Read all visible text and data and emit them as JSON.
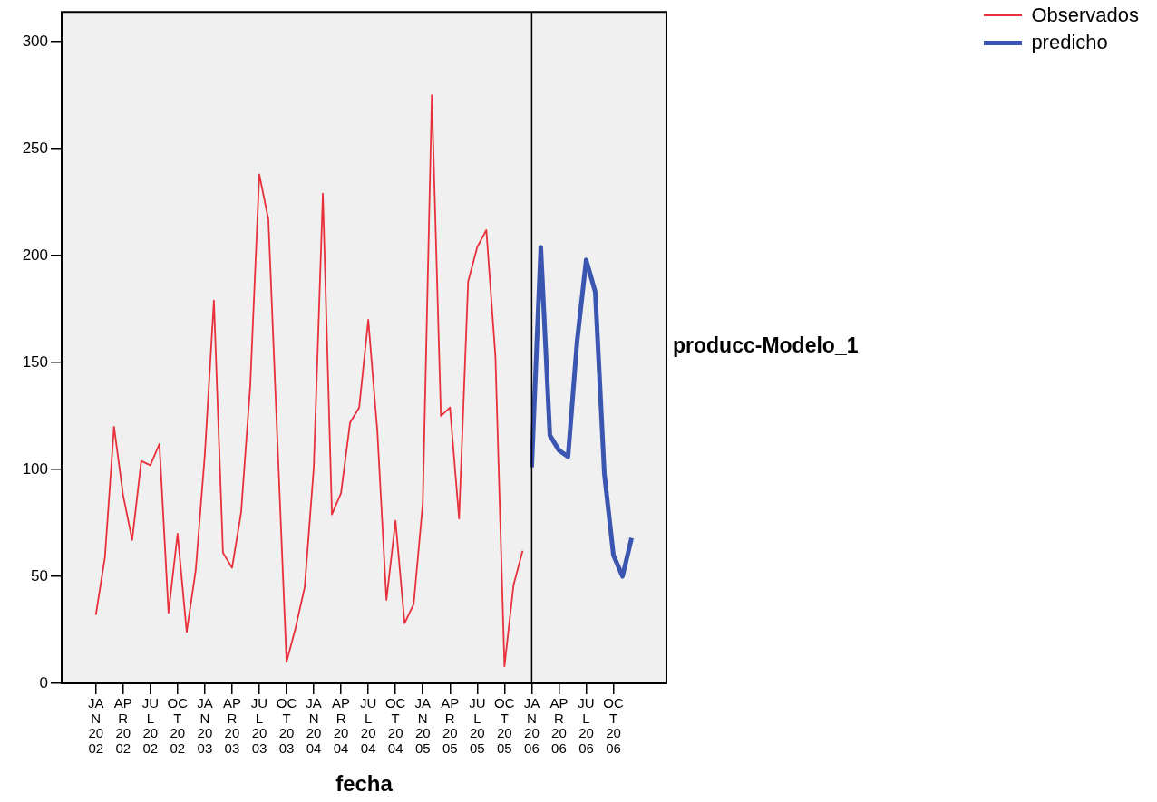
{
  "chart_data": {
    "type": "line",
    "xlabel": "fecha",
    "ylabel": "producc-Modelo_1",
    "xlim": [
      "2001-09-08",
      "2007-03-27"
    ],
    "xticks": [
      {
        "value": "2002-01",
        "label": "JAN 2002"
      },
      {
        "value": "2002-04",
        "label": "APR 2002"
      },
      {
        "value": "2002-07",
        "label": "JUL 2002"
      },
      {
        "value": "2002-10",
        "label": "OCT 2002"
      },
      {
        "value": "2003-01",
        "label": "JAN 2003"
      },
      {
        "value": "2003-04",
        "label": "APR 2003"
      },
      {
        "value": "2003-07",
        "label": "JUL 2003"
      },
      {
        "value": "2003-10",
        "label": "OCT 2003"
      },
      {
        "value": "2004-01",
        "label": "JAN 2004"
      },
      {
        "value": "2004-04",
        "label": "APR 2004"
      },
      {
        "value": "2004-07",
        "label": "JUL 2004"
      },
      {
        "value": "2004-10",
        "label": "OCT 2004"
      },
      {
        "value": "2005-01",
        "label": "JAN 2005"
      },
      {
        "value": "2005-04",
        "label": "APR 2005"
      },
      {
        "value": "2005-07",
        "label": "JUL 2005"
      },
      {
        "value": "2005-10",
        "label": "OCT 2005"
      },
      {
        "value": "2006-01",
        "label": "JAN 2006"
      },
      {
        "value": "2006-04",
        "label": "APR 2006"
      },
      {
        "value": "2006-07",
        "label": "JUL 2006"
      },
      {
        "value": "2006-10",
        "label": "OCT 2006"
      }
    ],
    "ylim": [
      0,
      314
    ],
    "yticks": [
      0,
      50,
      100,
      150,
      200,
      250,
      300
    ],
    "legend": "top right",
    "marker": "none",
    "line_style": "solid",
    "ref_lines": [
      {
        "axis": "x",
        "value": "2006-01",
        "color": "#000000"
      }
    ],
    "series": [
      {
        "name": "Observados",
        "color": "#e8303a",
        "x": [
          "2002-01",
          "2002-02",
          "2002-03",
          "2002-04",
          "2002-05",
          "2002-06",
          "2002-07",
          "2002-08",
          "2002-09",
          "2002-10",
          "2002-11",
          "2002-12",
          "2003-01",
          "2003-02",
          "2003-03",
          "2003-04",
          "2003-05",
          "2003-06",
          "2003-07",
          "2003-08",
          "2003-09",
          "2003-10",
          "2003-11",
          "2003-12",
          "2004-01",
          "2004-02",
          "2004-03",
          "2004-04",
          "2004-05",
          "2004-06",
          "2004-07",
          "2004-08",
          "2004-09",
          "2004-10",
          "2004-11",
          "2004-12",
          "2005-01",
          "2005-02",
          "2005-03",
          "2005-04",
          "2005-05",
          "2005-06",
          "2005-07",
          "2005-08",
          "2005-09",
          "2005-10",
          "2005-11",
          "2005-12"
        ],
        "values": [
          32,
          59,
          120,
          88,
          67,
          104,
          102,
          112,
          33,
          70,
          24,
          53,
          107,
          179,
          61,
          54,
          80,
          139,
          238,
          217,
          113,
          10,
          26,
          45,
          101,
          229,
          79,
          89,
          122,
          129,
          170,
          118,
          39,
          76,
          28,
          37,
          84,
          275,
          125,
          129,
          77,
          188,
          204,
          212,
          153,
          8,
          46,
          62
        ]
      },
      {
        "name": "predicho",
        "color": "#3a56b0",
        "x": [
          "2006-01",
          "2006-02",
          "2006-03",
          "2006-04",
          "2006-05",
          "2006-06",
          "2006-07",
          "2006-08",
          "2006-09",
          "2006-10",
          "2006-11",
          "2006-12"
        ],
        "values": [
          101,
          204,
          116,
          109,
          106,
          160,
          198,
          183,
          98,
          60,
          50,
          68
        ]
      }
    ]
  }
}
